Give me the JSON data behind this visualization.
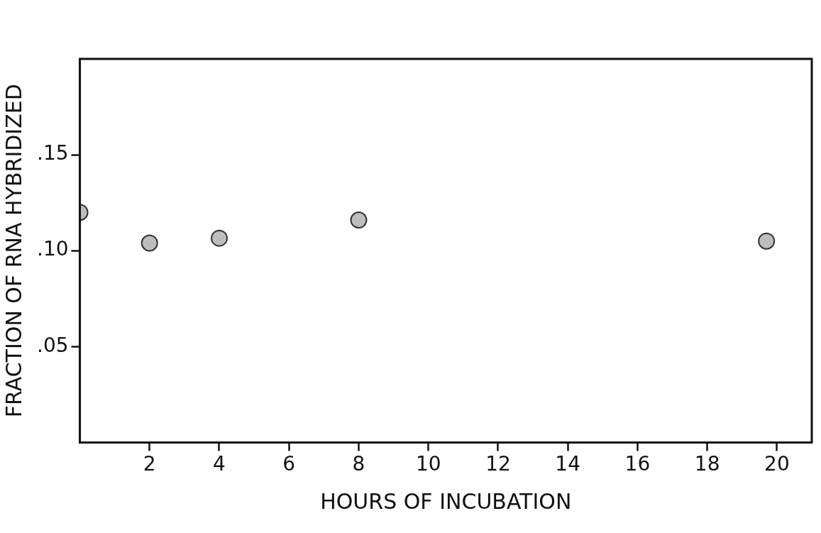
{
  "chart_data": {
    "type": "scatter",
    "xlabel": "HOURS OF INCUBATION",
    "ylabel": "FRACTION OF RNA HYBRIDIZED",
    "x": [
      0,
      2,
      4,
      8,
      19.7
    ],
    "series": [
      {
        "color": "#bdbdbd",
        "values": [
          0.12,
          0.104,
          0.1065,
          0.116,
          0.105
        ]
      }
    ],
    "marker": "circle",
    "grid": false,
    "legend": false,
    "xlim": [
      0,
      21
    ],
    "xticks": [
      2,
      4,
      6,
      8,
      10,
      12,
      14,
      16,
      18,
      20
    ],
    "ylim": [
      0,
      0.2
    ],
    "yticks": [
      {
        "value": 0.05,
        "label": ".05"
      },
      {
        "value": 0.1,
        "label": ".10"
      },
      {
        "value": 0.15,
        "label": ".15"
      }
    ]
  }
}
